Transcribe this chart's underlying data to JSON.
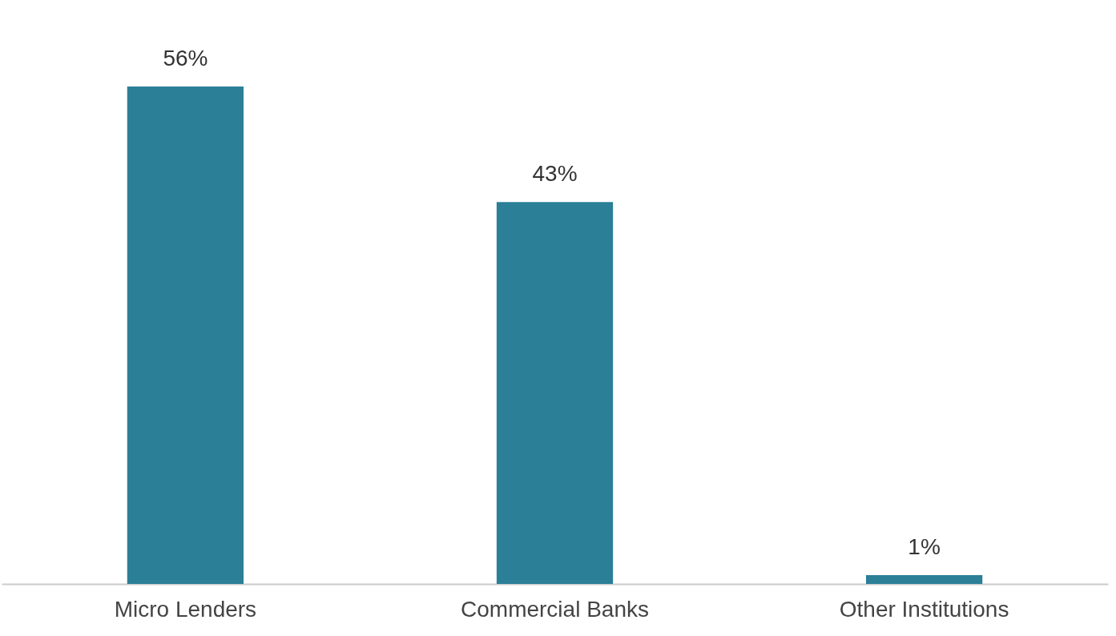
{
  "chart_data": {
    "type": "bar",
    "categories": [
      "Micro Lenders",
      "Commercial Banks",
      "Other Institutions"
    ],
    "values": [
      56,
      43,
      1
    ],
    "color": "#2b7f97",
    "value_labels": [
      "56%",
      "43%",
      "1%"
    ],
    "grid": false
  }
}
